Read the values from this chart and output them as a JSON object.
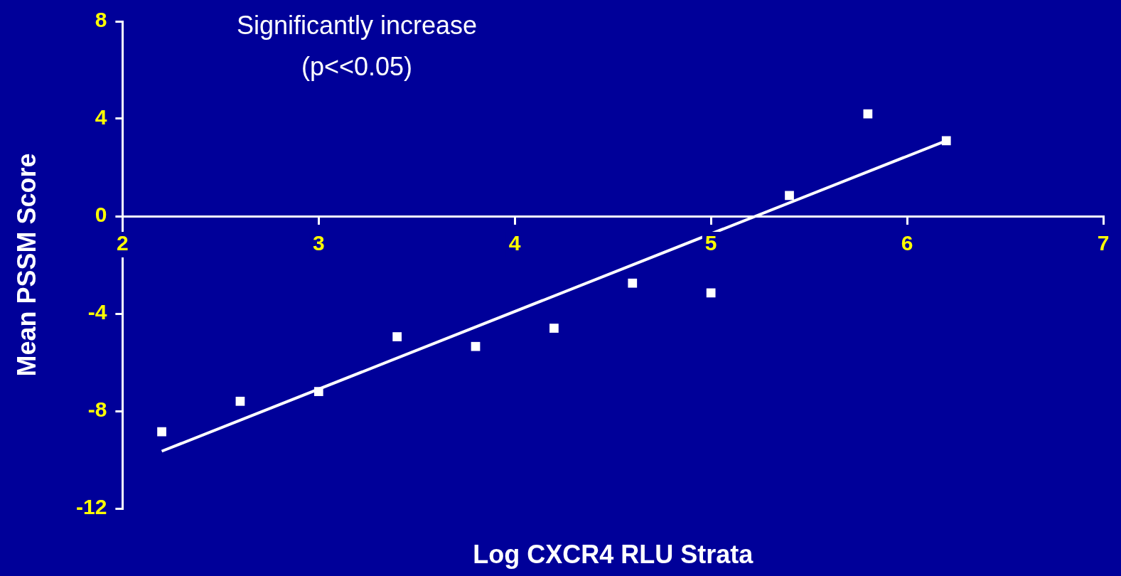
{
  "chart_data": {
    "type": "scatter",
    "xlabel": "Log CXCR4 RLU Strata",
    "ylabel": "Mean PSSM Score",
    "annotations": [
      "Significantly increase\n(p<<0.05)"
    ],
    "x": [
      2.2,
      2.6,
      3.0,
      3.4,
      3.8,
      4.2,
      4.6,
      5.0,
      5.4,
      5.8,
      6.2
    ],
    "series": [
      {
        "color": "#ffffff",
        "marker": "square",
        "values": [
          -8.85,
          -7.6,
          -7.2,
          -4.95,
          -5.35,
          -4.6,
          -2.75,
          -3.15,
          0.85,
          4.2,
          3.1
        ]
      },
      {
        "type": "line",
        "color": "#ffffff",
        "marker": "none",
        "x": [
          2.2,
          6.2
        ],
        "values": [
          -9.65,
          3.1
        ]
      }
    ],
    "xlim": [
      2,
      7
    ],
    "xticks": [
      2,
      3,
      4,
      5,
      6,
      7
    ],
    "ylim": [
      -12,
      8
    ],
    "yticks": [
      -12,
      -8,
      -4,
      0,
      4,
      8
    ],
    "grid": false,
    "legend": false
  }
}
